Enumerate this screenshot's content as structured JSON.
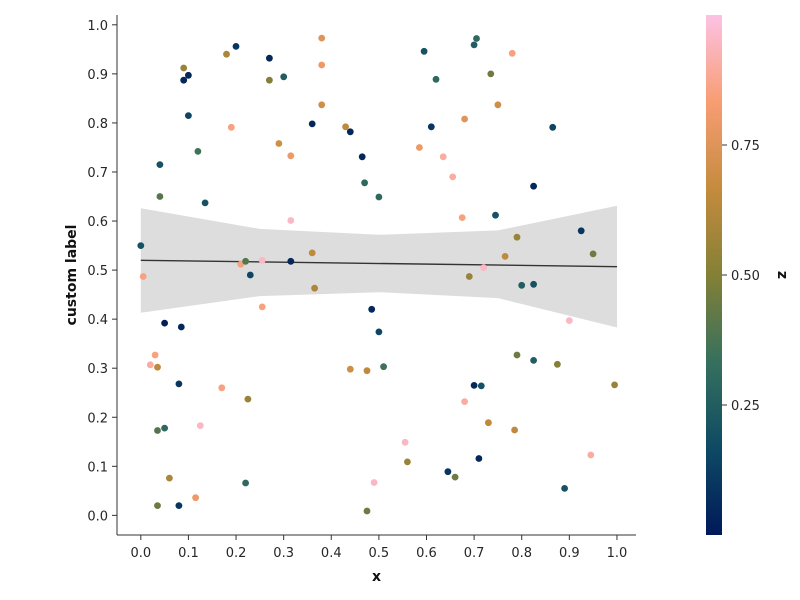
{
  "chart_data": {
    "type": "scatter",
    "title": "",
    "xlabel": "x",
    "ylabel": "custom label",
    "xlim": [
      -0.05,
      1.04
    ],
    "ylim": [
      -0.04,
      1.02
    ],
    "x_ticks": [
      "0.0",
      "0.1",
      "0.2",
      "0.3",
      "0.4",
      "0.5",
      "0.6",
      "0.7",
      "0.8",
      "0.9",
      "1.0"
    ],
    "y_ticks": [
      "0.0",
      "0.1",
      "0.2",
      "0.3",
      "0.4",
      "0.5",
      "0.6",
      "0.7",
      "0.8",
      "0.9",
      "1.0"
    ],
    "grid": false,
    "colorbar": {
      "label": "z",
      "range": [
        0.0,
        1.0
      ],
      "ticks": [
        "0.25",
        "0.50",
        "0.75"
      ],
      "tick_values": [
        0.25,
        0.5,
        0.75
      ],
      "colormap": "batlow",
      "stops": [
        "#001959",
        "#0e4a64",
        "#36705d",
        "#848036",
        "#c58b3e",
        "#f89d73",
        "#fcc2e4"
      ]
    },
    "regression": {
      "line": {
        "x": [
          0.0,
          1.0
        ],
        "y": [
          0.52,
          0.507
        ]
      },
      "band": [
        {
          "x": 0.0,
          "lo": 0.413,
          "hi": 0.626
        },
        {
          "x": 0.25,
          "lo": 0.447,
          "hi": 0.584
        },
        {
          "x": 0.5,
          "lo": 0.455,
          "hi": 0.572
        },
        {
          "x": 0.75,
          "lo": 0.443,
          "hi": 0.581
        },
        {
          "x": 1.0,
          "lo": 0.383,
          "hi": 0.631
        }
      ],
      "line_color": "#333333",
      "band_color": "#dddddd"
    },
    "points": [
      {
        "x": 0.0,
        "y": 0.55,
        "z": 0.2
      },
      {
        "x": 0.005,
        "y": 0.487,
        "z": 0.85
      },
      {
        "x": 0.02,
        "y": 0.307,
        "z": 0.9
      },
      {
        "x": 0.03,
        "y": 0.327,
        "z": 0.85
      },
      {
        "x": 0.035,
        "y": 0.302,
        "z": 0.65
      },
      {
        "x": 0.035,
        "y": 0.173,
        "z": 0.4
      },
      {
        "x": 0.035,
        "y": 0.02,
        "z": 0.45
      },
      {
        "x": 0.04,
        "y": 0.715,
        "z": 0.2
      },
      {
        "x": 0.04,
        "y": 0.65,
        "z": 0.4
      },
      {
        "x": 0.05,
        "y": 0.392,
        "z": 0.02
      },
      {
        "x": 0.05,
        "y": 0.178,
        "z": 0.3
      },
      {
        "x": 0.06,
        "y": 0.076,
        "z": 0.6
      },
      {
        "x": 0.08,
        "y": 0.268,
        "z": 0.1
      },
      {
        "x": 0.08,
        "y": 0.02,
        "z": 0.1
      },
      {
        "x": 0.085,
        "y": 0.384,
        "z": 0.05
      },
      {
        "x": 0.09,
        "y": 0.887,
        "z": 0.05
      },
      {
        "x": 0.09,
        "y": 0.912,
        "z": 0.55
      },
      {
        "x": 0.1,
        "y": 0.815,
        "z": 0.15
      },
      {
        "x": 0.1,
        "y": 0.897,
        "z": 0.05
      },
      {
        "x": 0.115,
        "y": 0.036,
        "z": 0.8
      },
      {
        "x": 0.12,
        "y": 0.742,
        "z": 0.35
      },
      {
        "x": 0.125,
        "y": 0.183,
        "z": 0.95
      },
      {
        "x": 0.135,
        "y": 0.637,
        "z": 0.2
      },
      {
        "x": 0.17,
        "y": 0.26,
        "z": 0.85
      },
      {
        "x": 0.18,
        "y": 0.94,
        "z": 0.6
      },
      {
        "x": 0.19,
        "y": 0.791,
        "z": 0.85
      },
      {
        "x": 0.2,
        "y": 0.956,
        "z": 0.1
      },
      {
        "x": 0.21,
        "y": 0.512,
        "z": 0.85
      },
      {
        "x": 0.22,
        "y": 0.518,
        "z": 0.4
      },
      {
        "x": 0.22,
        "y": 0.066,
        "z": 0.3
      },
      {
        "x": 0.225,
        "y": 0.237,
        "z": 0.55
      },
      {
        "x": 0.23,
        "y": 0.49,
        "z": 0.15
      },
      {
        "x": 0.255,
        "y": 0.425,
        "z": 0.85
      },
      {
        "x": 0.255,
        "y": 0.52,
        "z": 0.95
      },
      {
        "x": 0.27,
        "y": 0.887,
        "z": 0.5
      },
      {
        "x": 0.27,
        "y": 0.932,
        "z": 0.05
      },
      {
        "x": 0.29,
        "y": 0.758,
        "z": 0.7
      },
      {
        "x": 0.3,
        "y": 0.894,
        "z": 0.25
      },
      {
        "x": 0.315,
        "y": 0.518,
        "z": 0.05
      },
      {
        "x": 0.315,
        "y": 0.733,
        "z": 0.8
      },
      {
        "x": 0.315,
        "y": 0.601,
        "z": 0.95
      },
      {
        "x": 0.36,
        "y": 0.798,
        "z": 0.05
      },
      {
        "x": 0.36,
        "y": 0.535,
        "z": 0.65
      },
      {
        "x": 0.365,
        "y": 0.463,
        "z": 0.6
      },
      {
        "x": 0.38,
        "y": 0.837,
        "z": 0.7
      },
      {
        "x": 0.38,
        "y": 0.918,
        "z": 0.8
      },
      {
        "x": 0.38,
        "y": 0.973,
        "z": 0.75
      },
      {
        "x": 0.43,
        "y": 0.792,
        "z": 0.65
      },
      {
        "x": 0.44,
        "y": 0.782,
        "z": 0.05
      },
      {
        "x": 0.44,
        "y": 0.298,
        "z": 0.7
      },
      {
        "x": 0.465,
        "y": 0.731,
        "z": 0.05
      },
      {
        "x": 0.47,
        "y": 0.678,
        "z": 0.3
      },
      {
        "x": 0.475,
        "y": 0.295,
        "z": 0.65
      },
      {
        "x": 0.475,
        "y": 0.009,
        "z": 0.45
      },
      {
        "x": 0.485,
        "y": 0.42,
        "z": 0.05
      },
      {
        "x": 0.49,
        "y": 0.067,
        "z": 0.95
      },
      {
        "x": 0.5,
        "y": 0.649,
        "z": 0.3
      },
      {
        "x": 0.5,
        "y": 0.374,
        "z": 0.15
      },
      {
        "x": 0.51,
        "y": 0.303,
        "z": 0.35
      },
      {
        "x": 0.555,
        "y": 0.149,
        "z": 0.95
      },
      {
        "x": 0.56,
        "y": 0.109,
        "z": 0.55
      },
      {
        "x": 0.585,
        "y": 0.75,
        "z": 0.8
      },
      {
        "x": 0.595,
        "y": 0.946,
        "z": 0.2
      },
      {
        "x": 0.61,
        "y": 0.792,
        "z": 0.1
      },
      {
        "x": 0.62,
        "y": 0.889,
        "z": 0.3
      },
      {
        "x": 0.635,
        "y": 0.731,
        "z": 0.9
      },
      {
        "x": 0.645,
        "y": 0.089,
        "z": 0.1
      },
      {
        "x": 0.655,
        "y": 0.69,
        "z": 0.9
      },
      {
        "x": 0.66,
        "y": 0.078,
        "z": 0.45
      },
      {
        "x": 0.675,
        "y": 0.607,
        "z": 0.85
      },
      {
        "x": 0.68,
        "y": 0.808,
        "z": 0.75
      },
      {
        "x": 0.68,
        "y": 0.232,
        "z": 0.9
      },
      {
        "x": 0.69,
        "y": 0.487,
        "z": 0.55
      },
      {
        "x": 0.7,
        "y": 0.265,
        "z": 0.05
      },
      {
        "x": 0.7,
        "y": 0.959,
        "z": 0.25
      },
      {
        "x": 0.705,
        "y": 0.972,
        "z": 0.3
      },
      {
        "x": 0.71,
        "y": 0.116,
        "z": 0.05
      },
      {
        "x": 0.715,
        "y": 0.264,
        "z": 0.2
      },
      {
        "x": 0.72,
        "y": 0.505,
        "z": 0.95
      },
      {
        "x": 0.73,
        "y": 0.189,
        "z": 0.65
      },
      {
        "x": 0.735,
        "y": 0.9,
        "z": 0.45
      },
      {
        "x": 0.745,
        "y": 0.612,
        "z": 0.2
      },
      {
        "x": 0.75,
        "y": 0.837,
        "z": 0.7
      },
      {
        "x": 0.765,
        "y": 0.528,
        "z": 0.65
      },
      {
        "x": 0.78,
        "y": 0.942,
        "z": 0.85
      },
      {
        "x": 0.785,
        "y": 0.174,
        "z": 0.65
      },
      {
        "x": 0.79,
        "y": 0.567,
        "z": 0.55
      },
      {
        "x": 0.79,
        "y": 0.327,
        "z": 0.45
      },
      {
        "x": 0.8,
        "y": 0.469,
        "z": 0.25
      },
      {
        "x": 0.825,
        "y": 0.671,
        "z": 0.05
      },
      {
        "x": 0.825,
        "y": 0.471,
        "z": 0.2
      },
      {
        "x": 0.825,
        "y": 0.316,
        "z": 0.25
      },
      {
        "x": 0.865,
        "y": 0.791,
        "z": 0.15
      },
      {
        "x": 0.875,
        "y": 0.308,
        "z": 0.5
      },
      {
        "x": 0.89,
        "y": 0.055,
        "z": 0.2
      },
      {
        "x": 0.9,
        "y": 0.397,
        "z": 0.95
      },
      {
        "x": 0.925,
        "y": 0.58,
        "z": 0.1
      },
      {
        "x": 0.945,
        "y": 0.123,
        "z": 0.9
      },
      {
        "x": 0.95,
        "y": 0.533,
        "z": 0.45
      },
      {
        "x": 0.995,
        "y": 0.266,
        "z": 0.55
      }
    ]
  }
}
